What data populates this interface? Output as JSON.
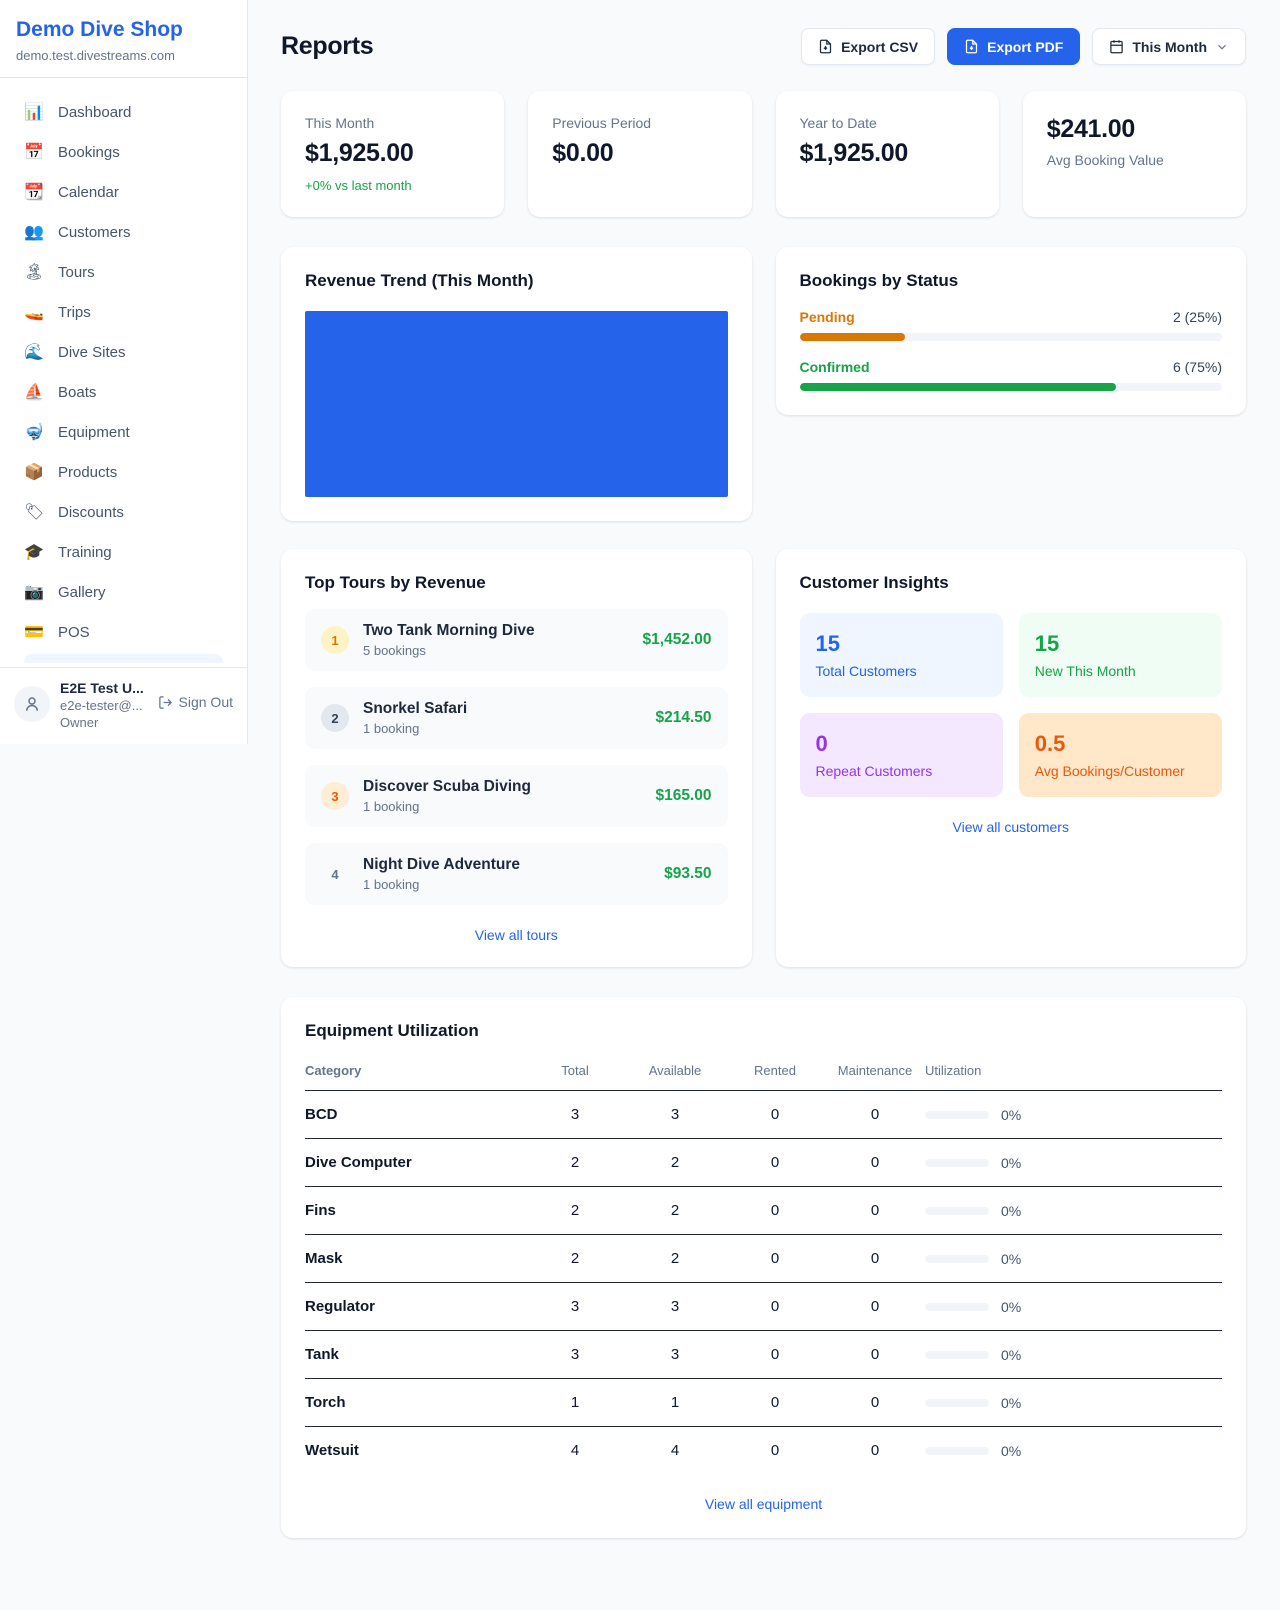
{
  "sidebar": {
    "shop_name": "Demo Dive Shop",
    "shop_domain": "demo.test.divestreams.com",
    "items": [
      {
        "id": "dashboard",
        "icon": "📊",
        "label": "Dashboard"
      },
      {
        "id": "bookings",
        "icon": "📅",
        "label": "Bookings"
      },
      {
        "id": "calendar",
        "icon": "📆",
        "label": "Calendar"
      },
      {
        "id": "customers",
        "icon": "👥",
        "label": "Customers"
      },
      {
        "id": "tours",
        "icon": "🏝",
        "label": "Tours"
      },
      {
        "id": "trips",
        "icon": "🚤",
        "label": "Trips"
      },
      {
        "id": "dive-sites",
        "icon": "🌊",
        "label": "Dive Sites"
      },
      {
        "id": "boats",
        "icon": "⛵",
        "label": "Boats"
      },
      {
        "id": "equipment",
        "icon": "🤿",
        "label": "Equipment"
      },
      {
        "id": "products",
        "icon": "📦",
        "label": "Products"
      },
      {
        "id": "discounts",
        "icon": "🏷",
        "label": "Discounts"
      },
      {
        "id": "training",
        "icon": "🎓",
        "label": "Training"
      },
      {
        "id": "gallery",
        "icon": "📷",
        "label": "Gallery"
      },
      {
        "id": "pos",
        "icon": "💳",
        "label": "POS"
      }
    ],
    "user": {
      "name": "E2E Test U...",
      "email": "e2e-tester@...",
      "role": "Owner",
      "sign_out_label": "Sign Out"
    }
  },
  "header": {
    "title": "Reports",
    "export_csv_label": "Export CSV",
    "export_pdf_label": "Export PDF",
    "period_label": "This Month"
  },
  "stats": [
    {
      "label": "This Month",
      "value": "$1,925.00",
      "delta": "+0% vs last month"
    },
    {
      "label": "Previous Period",
      "value": "$0.00"
    },
    {
      "label": "Year to Date",
      "value": "$1,925.00"
    },
    {
      "label": "Avg Booking Value",
      "value": "$241.00"
    }
  ],
  "revenue_trend": {
    "title": "Revenue Trend (This Month)",
    "chart": {
      "type": "area",
      "note": "solid filled block, no axes or labels visible",
      "fill_color": "#2563eb"
    }
  },
  "bookings_by_status": {
    "title": "Bookings by Status",
    "rows": [
      {
        "label": "Pending",
        "value": "2 (25%)",
        "pct": 25,
        "color": "#d97706"
      },
      {
        "label": "Confirmed",
        "value": "6 (75%)",
        "pct": 75,
        "color": "#16a34a"
      }
    ]
  },
  "top_tours": {
    "title": "Top Tours by Revenue",
    "rows": [
      {
        "rank": "1",
        "name": "Two Tank Morning Dive",
        "bookings": "5 bookings",
        "revenue": "$1,452.00"
      },
      {
        "rank": "2",
        "name": "Snorkel Safari",
        "bookings": "1 booking",
        "revenue": "$214.50"
      },
      {
        "rank": "3",
        "name": "Discover Scuba Diving",
        "bookings": "1 booking",
        "revenue": "$165.00"
      },
      {
        "rank": "4",
        "name": "Night Dive Adventure",
        "bookings": "1 booking",
        "revenue": "$93.50"
      }
    ],
    "view_all_label": "View all tours"
  },
  "customer_insights": {
    "title": "Customer Insights",
    "tiles": [
      {
        "value": "15",
        "label": "Total Customers",
        "color": "#2563eb"
      },
      {
        "value": "15",
        "label": "New This Month",
        "color": "#16a34a"
      },
      {
        "value": "0",
        "label": "Repeat Customers",
        "color": "#9333ea"
      },
      {
        "value": "0.5",
        "label": "Avg Bookings/Customer",
        "color": "#ea580c"
      }
    ],
    "view_all_label": "View all customers"
  },
  "equipment": {
    "title": "Equipment Utilization",
    "columns": [
      "Category",
      "Total",
      "Available",
      "Rented",
      "Maintenance",
      "Utilization"
    ],
    "rows": [
      {
        "category": "BCD",
        "total": "3",
        "available": "3",
        "rented": "0",
        "maintenance": "0",
        "utilization": "0%"
      },
      {
        "category": "Dive Computer",
        "total": "2",
        "available": "2",
        "rented": "0",
        "maintenance": "0",
        "utilization": "0%"
      },
      {
        "category": "Fins",
        "total": "2",
        "available": "2",
        "rented": "0",
        "maintenance": "0",
        "utilization": "0%"
      },
      {
        "category": "Mask",
        "total": "2",
        "available": "2",
        "rented": "0",
        "maintenance": "0",
        "utilization": "0%"
      },
      {
        "category": "Regulator",
        "total": "3",
        "available": "3",
        "rented": "0",
        "maintenance": "0",
        "utilization": "0%"
      },
      {
        "category": "Tank",
        "total": "3",
        "available": "3",
        "rented": "0",
        "maintenance": "0",
        "utilization": "0%"
      },
      {
        "category": "Torch",
        "total": "1",
        "available": "1",
        "rented": "0",
        "maintenance": "0",
        "utilization": "0%"
      },
      {
        "category": "Wetsuit",
        "total": "4",
        "available": "4",
        "rented": "0",
        "maintenance": "0",
        "utilization": "0%"
      }
    ],
    "view_all_label": "View all equipment"
  }
}
